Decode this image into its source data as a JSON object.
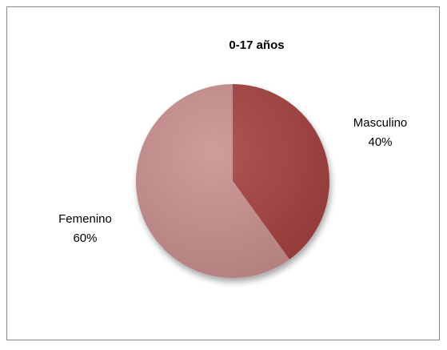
{
  "chart_data": {
    "type": "pie",
    "title": "0-17 años",
    "categories": [
      "Masculino",
      "Femenino"
    ],
    "values": [
      40,
      60
    ],
    "value_labels": [
      "40%",
      "60%"
    ],
    "colors": [
      "#a5403f",
      "#c98e8e"
    ]
  }
}
